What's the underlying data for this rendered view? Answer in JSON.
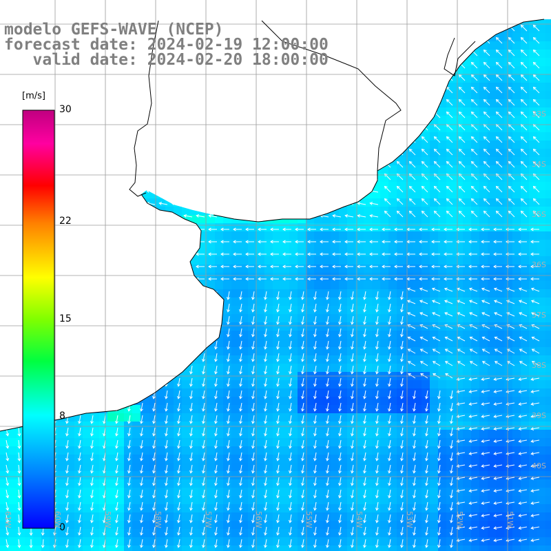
{
  "title": {
    "line1": "modelo GEFS-WAVE (NCEP)",
    "line2": "forecast date: 2024-02-19 12:00:00",
    "line3": "   valid date: 2024-02-20 18:00:00"
  },
  "colorbar": {
    "unit": "[m/s]",
    "ticks": [
      "30",
      "22",
      "15",
      "8",
      "0"
    ],
    "tick_values": [
      30,
      22,
      15,
      8,
      0
    ],
    "range": [
      0,
      30
    ],
    "colors": [
      "#0000ff",
      "#0080ff",
      "#00c0ff",
      "#00ffff",
      "#00ff40",
      "#80ff00",
      "#ffff00",
      "#ff8000",
      "#ff0000",
      "#ff00a0",
      "#c00080"
    ]
  },
  "lat_labels": [
    "33S",
    "34S",
    "35S",
    "36S",
    "37S",
    "38S",
    "39S",
    "40S"
  ],
  "lon_labels": [
    "61W",
    "60W",
    "59W",
    "58W",
    "57W",
    "56W",
    "55W",
    "54W",
    "53W",
    "52W",
    "51W"
  ],
  "colors": {
    "land": "#ffffff",
    "grid": "#9a9a9a",
    "coast": "#000000",
    "arrows": "#ffffff"
  },
  "icon": "wind-arrow"
}
